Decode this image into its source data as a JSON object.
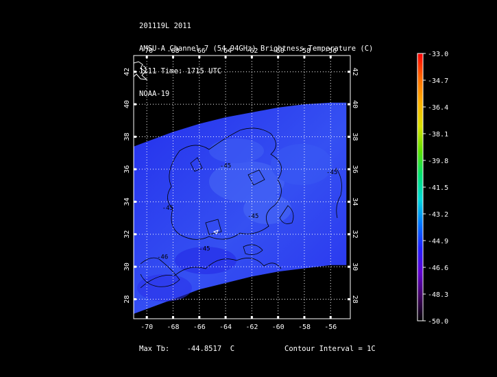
{
  "header": {
    "line1": "201119L 2011",
    "line2": "AMSU-A Channel 7 (54.94GHz) Brightness Temperature (C)",
    "line3": "1111 Time: 1715 UTC",
    "line4": "NOAA-19"
  },
  "footer": {
    "max_tb_label": "Max Tb:",
    "max_tb_value": "-44.8517",
    "max_tb_unit": "C",
    "contour_interval": "Contour Interval = 1C"
  },
  "colors": {
    "background": "#000000",
    "swath_fill": "#2a34f0",
    "swath_light": "#3f63f4",
    "contour": "#000000",
    "grid": "#ffffff"
  },
  "chart_data": {
    "type": "heatmap",
    "title": "AMSU-A Channel 7 (54.94GHz) Brightness Temperature (C)",
    "xlim": [
      -71,
      -54.5
    ],
    "ylim": [
      26.8,
      43
    ],
    "x_ticks": [
      -70,
      -68,
      -66,
      -64,
      -62,
      -60,
      -58,
      -56
    ],
    "x_tick_labels": [
      "-70",
      "-68",
      "-66",
      "-64",
      "-62",
      "-60",
      "-58",
      "-56"
    ],
    "y_ticks": [
      28,
      30,
      32,
      34,
      36,
      38,
      40,
      42
    ],
    "y_tick_labels": [
      "28",
      "30",
      "32",
      "34",
      "36",
      "38",
      "40",
      "42"
    ],
    "grid": true,
    "swath_edges": {
      "north": [
        [
          -71,
          37.4
        ],
        [
          -68,
          38.3
        ],
        [
          -66,
          38.8
        ],
        [
          -64,
          39.2
        ],
        [
          -62,
          39.5
        ],
        [
          -60,
          39.8
        ],
        [
          -58,
          40.0
        ],
        [
          -56,
          40.1
        ],
        [
          -54.8,
          40.1
        ]
      ],
      "south": [
        [
          -71,
          27.1
        ],
        [
          -68,
          28.0
        ],
        [
          -66,
          28.6
        ],
        [
          -64,
          29.0
        ],
        [
          -62,
          29.4
        ],
        [
          -60,
          29.7
        ],
        [
          -58,
          29.9
        ],
        [
          -56,
          30.1
        ],
        [
          -54.8,
          30.1
        ]
      ]
    },
    "contour_labels": [
      {
        "text": "-45",
        "lon": -64.0,
        "lat": 36.1
      },
      {
        "text": "-45",
        "lon": -68.4,
        "lat": 33.5
      },
      {
        "text": "-45",
        "lon": -61.9,
        "lat": 33.0
      },
      {
        "text": "-45",
        "lon": -65.6,
        "lat": 31.0
      },
      {
        "text": "-46",
        "lon": -68.8,
        "lat": 30.5
      },
      {
        "text": "-45",
        "lon": -55.9,
        "lat": 35.7
      }
    ],
    "colorbar": {
      "min": -50.0,
      "max": -33.0,
      "tick_values": [
        -33.0,
        -34.7,
        -36.4,
        -38.1,
        -39.8,
        -41.5,
        -43.2,
        -44.9,
        -46.6,
        -48.3,
        -50.0
      ],
      "tick_labels": [
        "-33.0",
        "-34.7",
        "-36.4",
        "-38.1",
        "-39.8",
        "-41.5",
        "-43.2",
        "-44.9",
        "-46.6",
        "-48.3",
        "-50.0"
      ],
      "colors": [
        "#ff0000",
        "#ff6a00",
        "#ffb000",
        "#d8e000",
        "#5ee000",
        "#00e070",
        "#00d8d8",
        "#0078ff",
        "#2020ff",
        "#6000d0",
        "#400060",
        "#000000"
      ]
    }
  }
}
